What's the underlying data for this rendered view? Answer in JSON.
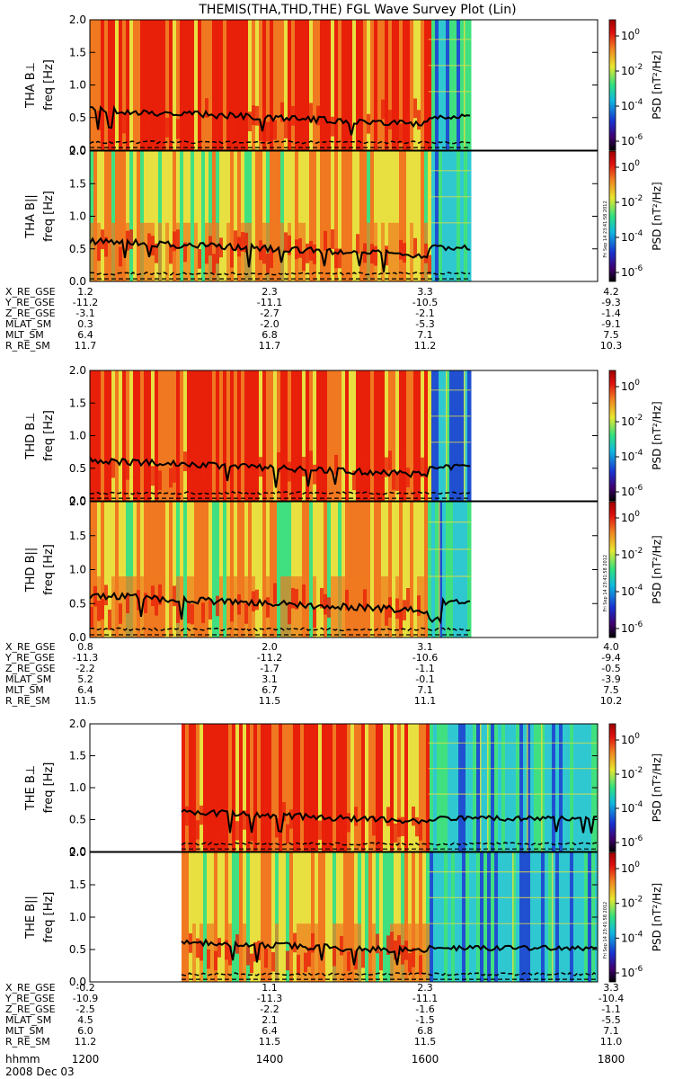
{
  "title": "THEMIS(THA,THD,THE) FGL Wave Survey Plot (Lin)",
  "freq_label": "freq [Hz]",
  "psd_label": "PSD [nT²/Hz]",
  "freq_ticks": [
    "0.0",
    "0.5",
    "1.0",
    "1.5",
    "2.0"
  ],
  "colorbar_ticks": [
    {
      "base": "10",
      "exp": "0"
    },
    {
      "base": "10",
      "exp": "-2"
    },
    {
      "base": "10",
      "exp": "-4"
    },
    {
      "base": "10",
      "exp": "-6"
    }
  ],
  "stamp": "Fri Sep 14 23:41:58 2012",
  "time_axis": {
    "hhmm_label": "hhmm",
    "ticks": [
      "1200",
      "1400",
      "1600",
      "1800"
    ],
    "date": "2008 Dec 03"
  },
  "colors": {
    "red": "#e8200a",
    "orange": "#f07820",
    "yellow": "#e8e040",
    "green": "#40e080",
    "cyan": "#30c8d0",
    "blue": "#2050d0",
    "line": "#000000"
  },
  "chart_data": [
    {
      "type": "heatmap",
      "probe": "THA",
      "panels": [
        {
          "label": "THA B⊥",
          "component": "perp"
        },
        {
          "label": "THA B||",
          "component": "par"
        }
      ],
      "x_range_hhmm": [
        1200,
        1800
      ],
      "data_end_hhmm": 1630,
      "sample_change_hhmm": 1600,
      "ylim": [
        0,
        2.0
      ],
      "ephemeris": [
        {
          "name": "X_RE_GSE",
          "values": [
            "1.2",
            "2.3",
            "3.3",
            "4.2"
          ]
        },
        {
          "name": "Y_RE_GSE",
          "values": [
            "-11.2",
            "-11.1",
            "-10.5",
            "-9.3"
          ]
        },
        {
          "name": "Z_RE_GSE",
          "values": [
            "-3.1",
            "-2.7",
            "-2.1",
            "-1.4"
          ]
        },
        {
          "name": "MLAT_SM",
          "values": [
            "0.3",
            "-2.0",
            "-5.3",
            "-9.1"
          ]
        },
        {
          "name": "MLT_SM",
          "values": [
            "6.4",
            "6.8",
            "7.1",
            "7.5"
          ]
        },
        {
          "name": "R_RE_SM",
          "values": [
            "11.7",
            "11.7",
            "11.2",
            "10.3"
          ]
        }
      ]
    },
    {
      "type": "heatmap",
      "probe": "THD",
      "panels": [
        {
          "label": "THD B⊥",
          "component": "perp"
        },
        {
          "label": "THD B||",
          "component": "par"
        }
      ],
      "x_range_hhmm": [
        1200,
        1800
      ],
      "data_end_hhmm": 1630,
      "sample_change_hhmm": 1600,
      "ylim": [
        0,
        2.0
      ],
      "ephemeris": [
        {
          "name": "X_RE_GSE",
          "values": [
            "0.8",
            "2.0",
            "3.1",
            "4.0"
          ]
        },
        {
          "name": "Y_RE_GSE",
          "values": [
            "-11.3",
            "-11.2",
            "-10.6",
            "-9.4"
          ]
        },
        {
          "name": "Z_RE_GSE",
          "values": [
            "-2.2",
            "-1.7",
            "-1.1",
            "-0.5"
          ]
        },
        {
          "name": "MLAT_SM",
          "values": [
            "5.2",
            "3.1",
            "-0.1",
            "-3.9"
          ]
        },
        {
          "name": "MLT_SM",
          "values": [
            "6.4",
            "6.7",
            "7.1",
            "7.5"
          ]
        },
        {
          "name": "R_RE_SM",
          "values": [
            "11.5",
            "11.5",
            "11.1",
            "10.2"
          ]
        }
      ]
    },
    {
      "type": "heatmap",
      "probe": "THE",
      "panels": [
        {
          "label": "THE B⊥",
          "component": "perp"
        },
        {
          "label": "THE B||",
          "component": "par"
        }
      ],
      "x_range_hhmm": [
        1200,
        1800
      ],
      "data_start_hhmm": 1305,
      "data_end_hhmm": 1800,
      "sample_change_hhmm": 1600,
      "ylim": [
        0,
        2.0
      ],
      "ephemeris": [
        {
          "name": "X_RE_GSE",
          "values": [
            "-0.2",
            "1.1",
            "2.3",
            "3.3"
          ]
        },
        {
          "name": "Y_RE_GSE",
          "values": [
            "-10.9",
            "-11.3",
            "-11.1",
            "-10.4"
          ]
        },
        {
          "name": "Z_RE_GSE",
          "values": [
            "-2.5",
            "-2.2",
            "-1.6",
            "-1.1"
          ]
        },
        {
          "name": "MLAT_SM",
          "values": [
            "4.5",
            "2.1",
            "-1.5",
            "-5.5"
          ]
        },
        {
          "name": "MLT_SM",
          "values": [
            "6.0",
            "6.4",
            "6.8",
            "7.1"
          ]
        },
        {
          "name": "R_RE_SM",
          "values": [
            "11.2",
            "11.5",
            "11.5",
            "11.0"
          ]
        }
      ]
    }
  ]
}
